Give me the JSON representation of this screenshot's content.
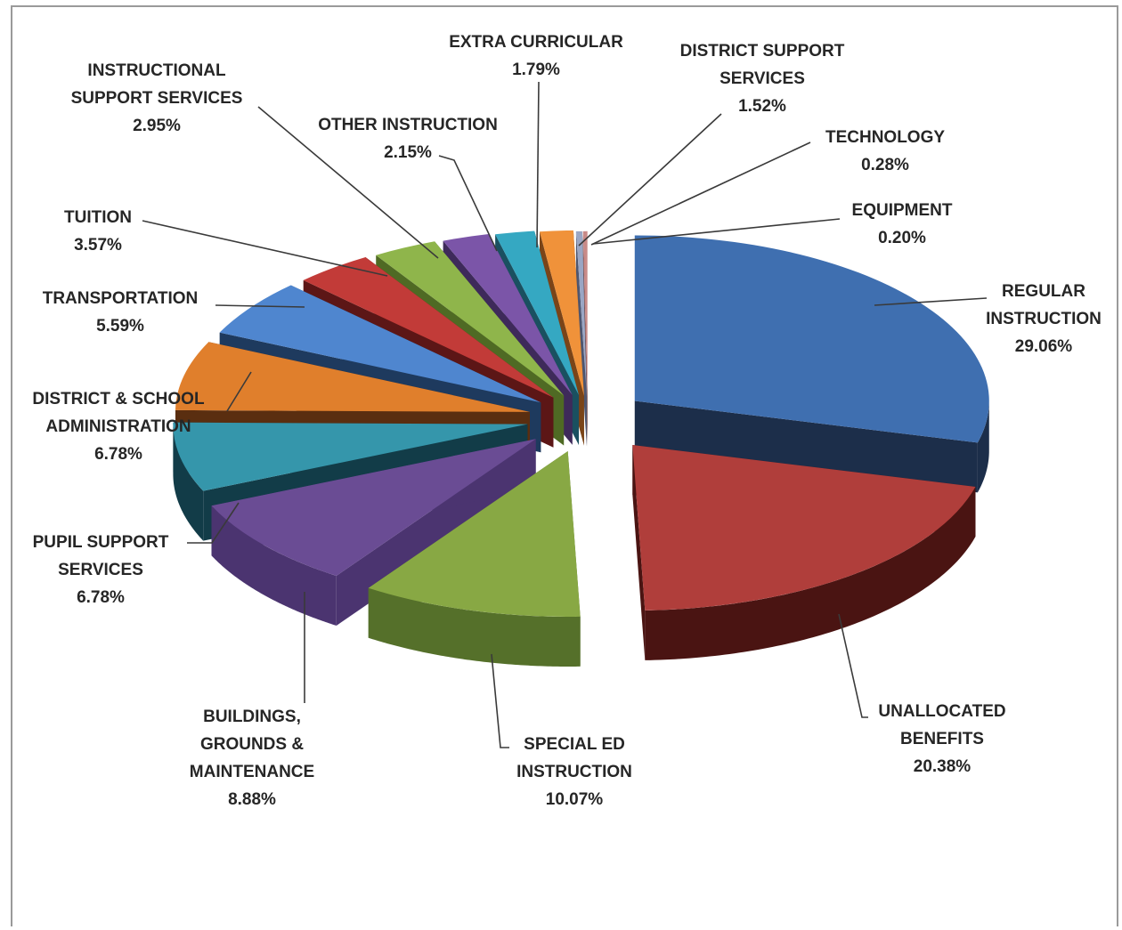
{
  "chart_data": {
    "type": "pie",
    "style": "exploded 3D pie",
    "legend": "none",
    "title": "",
    "slices": [
      {
        "label": "REGULAR INSTRUCTION",
        "label_lines": [
          "REGULAR",
          "INSTRUCTION"
        ],
        "value": 29.06,
        "value_text": "29.06%",
        "color": "#3f6fb0",
        "side_color": "#1c2e4a"
      },
      {
        "label": "UNALLOCATED BENEFITS",
        "label_lines": [
          "UNALLOCATED",
          "BENEFITS"
        ],
        "value": 20.38,
        "value_text": "20.38%",
        "color": "#b03e3b",
        "side_color": "#4a1412"
      },
      {
        "label": "SPECIAL ED INSTRUCTION",
        "label_lines": [
          "SPECIAL ED",
          "INSTRUCTION"
        ],
        "value": 10.07,
        "value_text": "10.07%",
        "color": "#88a844",
        "side_color": "#55702a"
      },
      {
        "label": "BUILDINGS, GROUNDS & MAINTENANCE",
        "label_lines": [
          "BUILDINGS,",
          "GROUNDS &",
          "MAINTENANCE"
        ],
        "value": 8.88,
        "value_text": "8.88%",
        "color": "#6a4c94",
        "side_color": "#4b3470"
      },
      {
        "label": "PUPIL SUPPORT SERVICES",
        "label_lines": [
          "PUPIL SUPPORT",
          "SERVICES"
        ],
        "value": 6.78,
        "value_text": "6.78%",
        "color": "#3596ab",
        "side_color": "#123c48"
      },
      {
        "label": "DISTRICT & SCHOOL ADMINISTRATION",
        "label_lines": [
          "DISTRICT  & SCHOOL",
          "ADMINISTRATION"
        ],
        "value": 6.78,
        "value_text": "6.78%",
        "color": "#e07f2c",
        "side_color": "#5a2e10"
      },
      {
        "label": "TRANSPORTATION",
        "label_lines": [
          "TRANSPORTATION"
        ],
        "value": 5.59,
        "value_text": "5.59%",
        "color": "#4f86cf",
        "side_color": "#1e3a5e"
      },
      {
        "label": "TUITION",
        "label_lines": [
          "TUITION"
        ],
        "value": 3.57,
        "value_text": "3.57%",
        "color": "#c23b38",
        "side_color": "#5c1616"
      },
      {
        "label": "INSTRUCTIONAL SUPPORT SERVICES",
        "label_lines": [
          "INSTRUCTIONAL",
          "SUPPORT SERVICES"
        ],
        "value": 2.95,
        "value_text": "2.95%",
        "color": "#8fb54b",
        "side_color": "#4f6a24"
      },
      {
        "label": "OTHER INSTRUCTION",
        "label_lines": [
          "OTHER INSTRUCTION"
        ],
        "value": 2.15,
        "value_text": "2.15%",
        "color": "#7b55a8",
        "side_color": "#3e2a5a"
      },
      {
        "label": "EXTRA CURRICULAR",
        "label_lines": [
          "EXTRA CURRICULAR"
        ],
        "value": 1.79,
        "value_text": "1.79%",
        "color": "#35a8c2",
        "side_color": "#1a5060"
      },
      {
        "label": "DISTRICT SUPPORT SERVICES",
        "label_lines": [
          "DISTRICT  SUPPORT",
          "SERVICES"
        ],
        "value": 1.52,
        "value_text": "1.52%",
        "color": "#f0923a",
        "side_color": "#7a4418"
      },
      {
        "label": "TECHNOLOGY",
        "label_lines": [
          "TECHNOLOGY"
        ],
        "value": 0.28,
        "value_text": "0.28%",
        "color": "#9aa6c4",
        "side_color": "#4e5670"
      },
      {
        "label": "EQUIPMENT",
        "label_lines": [
          "EQUIPMENT"
        ],
        "value": 0.2,
        "value_text": "0.20%",
        "color": "#c88a88",
        "side_color": "#6a3e3c"
      }
    ]
  }
}
